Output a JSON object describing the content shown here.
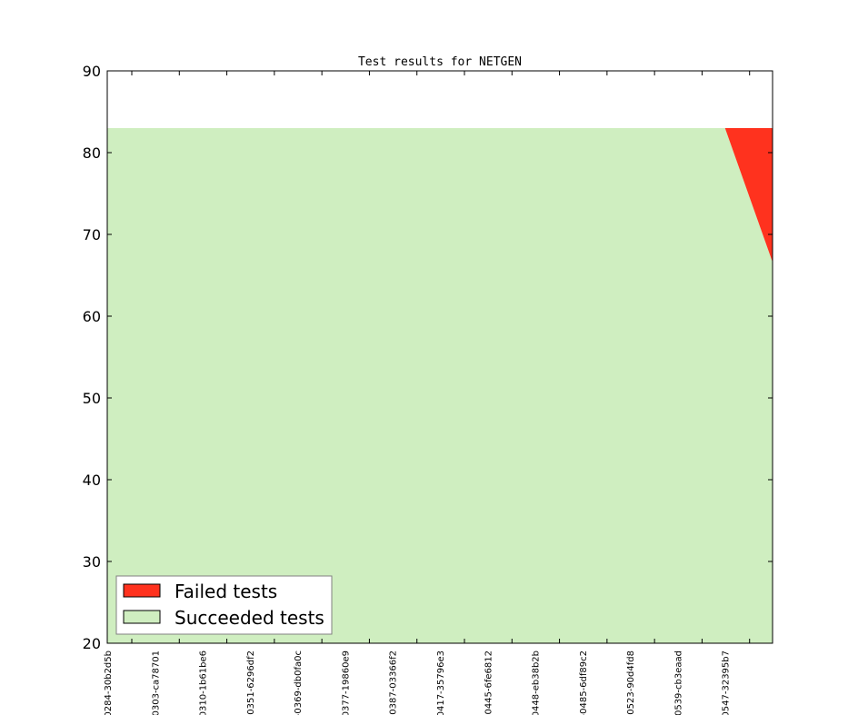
{
  "chart_data": {
    "type": "area",
    "title": "Test results for NETGEN",
    "xlabel": "",
    "ylabel": "",
    "ylim": [
      20,
      90
    ],
    "yticks": [
      20,
      30,
      40,
      50,
      60,
      70,
      80,
      90
    ],
    "categories": [
      "0284-30b2d5b",
      "0303-ca78701",
      "0310-1b61be6",
      "-0351-6296df2",
      "-0369-db0fa0c",
      "0377-19860e9",
      "0387-03366f2",
      "0417-35796e3",
      "-0445-6fe6812",
      "0448-eb38b2b",
      "-0485-6df89c2",
      "-0523-90d4fd8",
      "0539-cb3eaad",
      "0547-32395b7",
      ""
    ],
    "series": [
      {
        "name": "Succeeded tests",
        "color": "#cfeec0",
        "values": [
          83,
          83,
          83,
          83,
          83,
          83,
          83,
          83,
          83,
          83,
          83,
          83,
          83,
          83,
          66.6
        ]
      },
      {
        "name": "Failed tests",
        "color": "#ff321e",
        "values": [
          0,
          0,
          0,
          0,
          0,
          0,
          0,
          0,
          0,
          0,
          0,
          0,
          0,
          0,
          16.4
        ]
      }
    ],
    "legend": {
      "placement": "lower-left",
      "entries": [
        "Failed tests",
        "Succeeded tests"
      ]
    },
    "grid": false
  }
}
